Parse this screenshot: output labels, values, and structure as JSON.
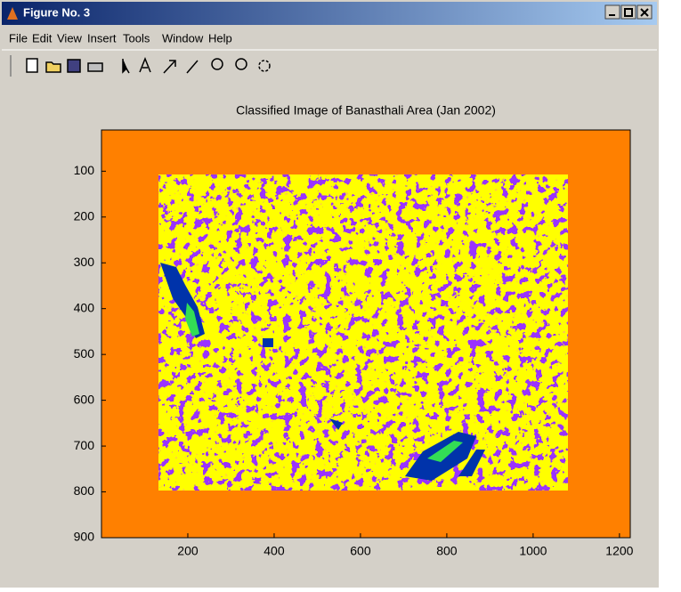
{
  "window": {
    "title": "Figure No. 3",
    "menu": [
      "File",
      "Edit",
      "View",
      "Insert",
      "Tools",
      "Window",
      "Help"
    ]
  },
  "chart_data": {
    "type": "image",
    "title": "Classified Image of Banasthali Area (Jan 2002)",
    "xlim": [
      0,
      1225
    ],
    "ylim": [
      10,
      900
    ],
    "y_reversed": true,
    "xticks": [
      200,
      400,
      600,
      800,
      1000,
      1200
    ],
    "yticks": [
      100,
      200,
      300,
      400,
      500,
      600,
      700,
      800,
      900
    ]
  }
}
